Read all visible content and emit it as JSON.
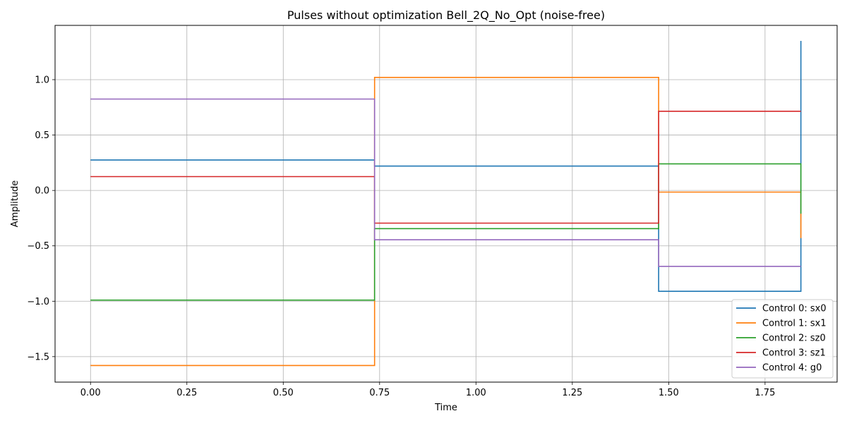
{
  "chart_data": {
    "type": "line",
    "step": true,
    "title": "Pulses without optimization Bell_2Q_No_Opt (noise-free)",
    "xlabel": "Time",
    "ylabel": "Amplitude",
    "xlim": [
      -0.092,
      1.937
    ],
    "ylim": [
      -1.73,
      1.49
    ],
    "grid": true,
    "legend_position": "lower-right",
    "x": [
      0.0,
      0.737,
      1.474,
      1.843
    ],
    "xticks": [
      0.0,
      0.25,
      0.5,
      0.75,
      1.0,
      1.25,
      1.5,
      1.75
    ],
    "xtick_labels": [
      "0.00",
      "0.25",
      "0.50",
      "0.75",
      "1.00",
      "1.25",
      "1.50",
      "1.75"
    ],
    "yticks": [
      -1.5,
      -1.0,
      -0.5,
      0.0,
      0.5,
      1.0
    ],
    "ytick_labels": [
      "−1.5",
      "−1.0",
      "−0.5",
      "0.0",
      "0.5",
      "1.0"
    ],
    "series": [
      {
        "name": "Control 0: sx0",
        "color": "#1f77b4",
        "values": [
          0.275,
          0.22,
          -0.91,
          1.35
        ]
      },
      {
        "name": "Control 1: sx1",
        "color": "#ff7f0e",
        "values": [
          -1.58,
          1.02,
          -0.015,
          -0.43
        ]
      },
      {
        "name": "Control 2: sz0",
        "color": "#2ca02c",
        "values": [
          -0.99,
          -0.345,
          0.24,
          -0.21
        ]
      },
      {
        "name": "Control 3: sz1",
        "color": "#d62728",
        "values": [
          0.125,
          -0.295,
          0.715,
          0.715
        ]
      },
      {
        "name": "Control 4: g0",
        "color": "#9467bd",
        "values": [
          0.825,
          -0.445,
          -0.685,
          -0.685
        ]
      }
    ]
  }
}
